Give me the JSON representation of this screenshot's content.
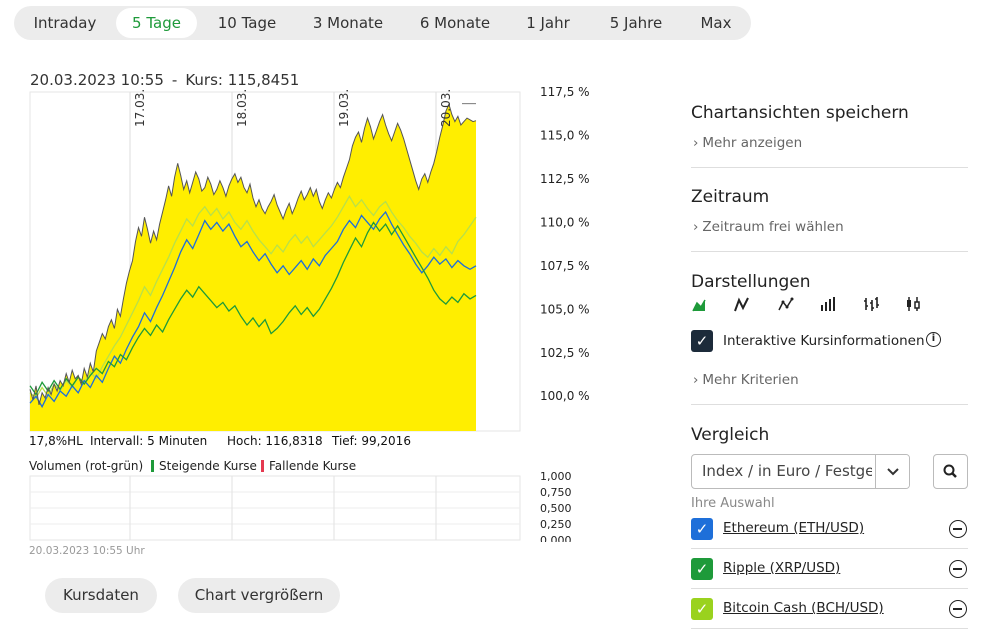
{
  "tabs": [
    {
      "label": "Intraday",
      "active": false
    },
    {
      "label": "5 Tage",
      "active": true
    },
    {
      "label": "10 Tage",
      "active": false
    },
    {
      "label": "3 Monate",
      "active": false
    },
    {
      "label": "6 Monate",
      "active": false
    },
    {
      "label": "1 Jahr",
      "active": false
    },
    {
      "label": "5 Jahre",
      "active": false
    },
    {
      "label": "Max",
      "active": false
    }
  ],
  "chart_header": {
    "datetime": "20.03.2023 10:55",
    "separator": "-",
    "kurs_label": "Kurs:",
    "kurs_value": "115,8451"
  },
  "stats": {
    "hl": "17,8%HL",
    "interval": "Intervall: 5 Minuten",
    "high": "Hoch: 116,8318",
    "low": "Tief: 99,2016"
  },
  "volume_legend": {
    "title": "Volumen (rot-grün)",
    "rising": "Steigende Kurse",
    "falling": "Fallende Kurse"
  },
  "timestamp": "20.03.2023 10:55 Uhr",
  "buttons": {
    "kursdaten": "Kursdaten",
    "enlarge": "Chart vergrößern"
  },
  "sidebar": {
    "save_title": "Chartansichten speichern",
    "save_link": "Mehr anzeigen",
    "range_title": "Zeitraum",
    "range_link": "Zeitraum frei wählen",
    "views_title": "Darstellungen",
    "view_icons": [
      "area-chart-icon",
      "line-chart-icon",
      "line-points-chart-icon",
      "volume-bars-icon",
      "ohlc-chart-icon",
      "candlestick-chart-icon"
    ],
    "interactive_label": "Interaktive Kursinformationen",
    "interactive_checked": true,
    "criteria_link": "Mehr Kriterien",
    "compare_title": "Vergleich",
    "compare_select": "Index / in Euro / Festgeld",
    "selection_label": "Ihre Auswahl",
    "compare_items": [
      {
        "name": "Ethereum (ETH/USD)",
        "color": "#1e6fd9",
        "checked": true
      },
      {
        "name": "Ripple (XRP/USD)",
        "color": "#1e9a3a",
        "checked": true
      },
      {
        "name": "Bitcoin Cash (BCH/USD)",
        "color": "#9ad21e",
        "checked": true
      }
    ]
  },
  "colors": {
    "main_area": "#ffee00",
    "main_line": "#555555",
    "ethereum": "#1e6fd9",
    "ripple": "#1e9a3a",
    "bitcoin_cash": "#b8e04a",
    "accent": "#1e9a3a",
    "falling": "#e53950"
  },
  "chart_data": {
    "type": "area",
    "ylim": [
      98.0,
      117.5
    ],
    "y_ticks": [
      "117,5 %",
      "115,0 %",
      "112,5 %",
      "110,0 %",
      "107,5 %",
      "105,0 %",
      "102,5 %",
      "100,0 %"
    ],
    "y_tick_values": [
      117.5,
      115.0,
      112.5,
      110.0,
      107.5,
      105.0,
      102.5,
      100.0
    ],
    "date_markers": [
      "17.03.",
      "18.03.",
      "19.03.",
      "20.03."
    ],
    "grid": true,
    "series": [
      {
        "name": "",
        "x": [
          0,
          3,
          6,
          9,
          12,
          15,
          18,
          21,
          24,
          27,
          30,
          33,
          36,
          39,
          42,
          45,
          48,
          51,
          54,
          57,
          60,
          63,
          66,
          69,
          72,
          75,
          78,
          81,
          84,
          87,
          90,
          93,
          96,
          99,
          102,
          105,
          108,
          111,
          114,
          117,
          120,
          123,
          126,
          129,
          132,
          135,
          138,
          141,
          144,
          147,
          150,
          153,
          156,
          159,
          162,
          165,
          168,
          171,
          174,
          177,
          180,
          183,
          186,
          189,
          192,
          195,
          198,
          201,
          204,
          207,
          210,
          213,
          216,
          219,
          222,
          225,
          228,
          231,
          234,
          237,
          240,
          243,
          246,
          249,
          252,
          255,
          258,
          261,
          264,
          267,
          270,
          273,
          276,
          279,
          282,
          285,
          288,
          291,
          294,
          297,
          300,
          303,
          306,
          309,
          312,
          315,
          318,
          321,
          324,
          327,
          330,
          333,
          336,
          339,
          342,
          345,
          348,
          351,
          354,
          357,
          360,
          363,
          366,
          369,
          372,
          375,
          378,
          381,
          384,
          387,
          390,
          393,
          396,
          399,
          402,
          405,
          408,
          411,
          414,
          417,
          420,
          423,
          426,
          429,
          432,
          435,
          438,
          441,
          444
        ],
        "values": [
          100.4,
          99.8,
          100.6,
          99.5,
          100.2,
          99.9,
          100.5,
          100.1,
          100.7,
          100.3,
          100.9,
          100.6,
          101.3,
          100.8,
          101.5,
          101.0,
          101.2,
          100.7,
          101.6,
          101.1,
          101.9,
          101.4,
          102.6,
          103.1,
          103.6,
          103.3,
          104.0,
          104.4,
          103.9,
          105.0,
          104.6,
          105.6,
          106.5,
          107.2,
          107.8,
          108.9,
          109.7,
          109.2,
          110.3,
          109.6,
          108.8,
          109.5,
          109.0,
          109.9,
          110.6,
          111.3,
          112.1,
          111.5,
          112.6,
          113.4,
          112.7,
          111.9,
          112.4,
          111.7,
          112.3,
          112.9,
          112.5,
          111.8,
          112.0,
          112.6,
          112.2,
          111.6,
          111.9,
          112.4,
          112.0,
          111.5,
          112.1,
          112.5,
          112.8,
          112.3,
          112.6,
          112.0,
          111.7,
          112.2,
          111.4,
          110.9,
          111.3,
          110.8,
          110.5,
          110.9,
          111.2,
          111.6,
          111.0,
          110.6,
          110.2,
          110.7,
          111.1,
          110.5,
          110.9,
          111.4,
          111.8,
          111.3,
          111.6,
          112.0,
          111.5,
          111.9,
          111.2,
          110.8,
          111.3,
          111.7,
          111.4,
          111.9,
          112.3,
          112.0,
          112.6,
          113.1,
          113.6,
          114.4,
          114.9,
          115.2,
          114.6,
          115.4,
          116.0,
          115.5,
          114.8,
          115.3,
          115.8,
          116.2,
          115.6,
          115.1,
          114.7,
          115.2,
          115.7,
          115.3,
          114.8,
          114.2,
          113.6,
          113.0,
          112.4,
          111.9,
          112.5,
          112.8,
          112.3,
          112.9,
          113.4,
          114.1,
          114.9,
          115.6,
          116.4,
          116.8,
          116.2,
          115.8,
          116.1,
          115.6,
          115.8,
          116.0,
          115.9,
          115.8,
          115.85
        ]
      },
      {
        "name": "Ethereum (ETH/USD)",
        "x": [
          0,
          6,
          12,
          18,
          24,
          30,
          36,
          42,
          48,
          54,
          60,
          66,
          72,
          78,
          84,
          90,
          96,
          102,
          108,
          114,
          120,
          126,
          132,
          138,
          144,
          150,
          156,
          162,
          168,
          174,
          180,
          186,
          192,
          198,
          204,
          210,
          216,
          222,
          228,
          234,
          240,
          246,
          252,
          258,
          264,
          270,
          276,
          282,
          288,
          294,
          300,
          306,
          312,
          318,
          324,
          330,
          336,
          342,
          348,
          354,
          360,
          366,
          372,
          378,
          384,
          390,
          396,
          402,
          408,
          414,
          420,
          426,
          432,
          438,
          444
        ],
        "values": [
          99.6,
          100.0,
          99.4,
          100.1,
          99.7,
          100.3,
          100.0,
          100.6,
          100.2,
          100.9,
          100.5,
          101.2,
          100.8,
          101.6,
          102.3,
          101.9,
          102.7,
          103.4,
          104.0,
          104.8,
          104.3,
          105.1,
          105.8,
          106.6,
          107.4,
          108.3,
          109.0,
          108.5,
          109.3,
          110.1,
          109.6,
          110.0,
          109.5,
          109.9,
          109.2,
          108.6,
          108.9,
          108.3,
          107.8,
          108.2,
          107.6,
          107.1,
          107.5,
          107.0,
          107.4,
          107.8,
          107.3,
          107.9,
          107.5,
          108.1,
          108.5,
          108.9,
          109.6,
          110.1,
          109.7,
          110.4,
          110.0,
          109.6,
          110.2,
          110.6,
          109.9,
          109.3,
          108.7,
          108.2,
          107.6,
          107.1,
          107.5,
          108.0,
          107.6,
          107.9,
          107.4,
          107.8,
          107.5,
          107.3,
          107.5
        ]
      },
      {
        "name": "Ripple (XRP/USD)",
        "x": [
          0,
          6,
          12,
          18,
          24,
          30,
          36,
          42,
          48,
          54,
          60,
          66,
          72,
          78,
          84,
          90,
          96,
          102,
          108,
          114,
          120,
          126,
          132,
          138,
          144,
          150,
          156,
          162,
          168,
          174,
          180,
          186,
          192,
          198,
          204,
          210,
          216,
          222,
          228,
          234,
          240,
          246,
          252,
          258,
          264,
          270,
          276,
          282,
          288,
          294,
          300,
          306,
          312,
          318,
          324,
          330,
          336,
          342,
          348,
          354,
          360,
          366,
          372,
          378,
          384,
          390,
          396,
          402,
          408,
          414,
          420,
          426,
          432,
          438,
          444
        ],
        "values": [
          100.6,
          100.1,
          100.8,
          100.3,
          100.9,
          100.4,
          101.0,
          100.6,
          101.1,
          100.7,
          101.2,
          101.6,
          101.3,
          102.0,
          101.7,
          102.4,
          102.1,
          102.8,
          103.4,
          103.9,
          103.5,
          104.1,
          103.7,
          104.4,
          105.0,
          105.6,
          106.1,
          105.7,
          106.3,
          105.9,
          105.5,
          105.1,
          105.4,
          104.9,
          105.2,
          104.6,
          104.1,
          104.5,
          104.0,
          104.4,
          103.6,
          103.9,
          104.3,
          104.8,
          105.2,
          104.7,
          105.1,
          104.6,
          105.0,
          105.6,
          106.2,
          106.9,
          107.7,
          108.4,
          109.1,
          108.6,
          109.4,
          110.0,
          109.5,
          109.9,
          109.3,
          109.8,
          109.2,
          108.6,
          108.0,
          107.4,
          106.8,
          106.1,
          105.6,
          105.3,
          105.7,
          105.4,
          105.9,
          105.6,
          105.8
        ]
      },
      {
        "name": "Bitcoin Cash (BCH/USD)",
        "x": [
          0,
          6,
          12,
          18,
          24,
          30,
          36,
          42,
          48,
          54,
          60,
          66,
          72,
          78,
          84,
          90,
          96,
          102,
          108,
          114,
          120,
          126,
          132,
          138,
          144,
          150,
          156,
          162,
          168,
          174,
          180,
          186,
          192,
          198,
          204,
          210,
          216,
          222,
          228,
          234,
          240,
          246,
          252,
          258,
          264,
          270,
          276,
          282,
          288,
          294,
          300,
          306,
          312,
          318,
          324,
          330,
          336,
          342,
          348,
          354,
          360,
          366,
          372,
          378,
          384,
          390,
          396,
          402,
          408,
          414,
          420,
          426,
          432,
          438,
          444
        ],
        "values": [
          100.2,
          99.9,
          100.5,
          100.0,
          100.7,
          100.3,
          100.9,
          100.5,
          101.1,
          100.8,
          101.4,
          101.0,
          101.7,
          102.3,
          102.9,
          103.4,
          104.1,
          104.8,
          105.5,
          106.3,
          105.8,
          106.6,
          107.3,
          108.0,
          108.8,
          109.5,
          110.2,
          109.8,
          110.5,
          110.9,
          110.4,
          110.8,
          110.2,
          110.6,
          110.0,
          109.6,
          110.1,
          109.5,
          109.0,
          108.6,
          108.2,
          108.7,
          108.3,
          108.9,
          109.3,
          108.8,
          109.2,
          108.6,
          109.0,
          109.4,
          109.8,
          110.3,
          110.9,
          111.5,
          110.9,
          111.3,
          110.8,
          110.4,
          110.9,
          111.2,
          110.6,
          110.1,
          109.7,
          109.2,
          108.8,
          108.3,
          108.0,
          108.5,
          108.1,
          108.6,
          108.2,
          108.9,
          109.3,
          109.8,
          110.3
        ]
      }
    ],
    "volume_ticks": [
      "1,000",
      "0,750",
      "0,500",
      "0,250",
      "0,000"
    ]
  }
}
